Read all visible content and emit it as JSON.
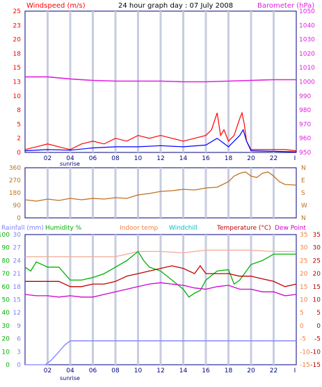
{
  "header": {
    "windspeed_label": "Windspeed (m/s)",
    "title": "24 hour graph day : 07 July 2008",
    "barometer_label": "Barometer (hPa)"
  },
  "legend": {
    "rainfall": "Rainfall (mm)",
    "humidity": "Humidity %",
    "indoor": "Indoor temp",
    "windchill": "Windchill",
    "temperature": "Temperature (°C)",
    "dewpoint": "Dew Point"
  },
  "sunrise_label": "sunrise",
  "colors": {
    "frame": "#000080",
    "grid": "#c8cce0",
    "wind_gust": "#ff0000",
    "wind_avg": "#0000ff",
    "barometer": "#e020e0",
    "direction": "#c07020",
    "rainfall": "#8080ff",
    "humidity": "#00b000",
    "indoor": "#f4b0a0",
    "temperature": "#c00000",
    "dewpoint": "#d000d0",
    "axis_text": "#000080",
    "baro_text": "#e020e0",
    "indoor_text": "#f08040",
    "windchill_text": "#00c0c0"
  },
  "chart_data": [
    {
      "type": "line",
      "title": "24 hour graph day : 07 July 2008",
      "x_ticks": [
        "02",
        "04",
        "06",
        "08",
        "10",
        "12",
        "14",
        "16",
        "18",
        "20",
        "22"
      ],
      "x_range_hours": [
        0,
        24
      ],
      "y_left": {
        "label": "Windspeed (m/s)",
        "ticks": [
          0,
          2,
          5,
          8,
          10,
          13,
          15,
          18,
          20,
          23,
          25
        ],
        "range": [
          0,
          25
        ]
      },
      "y_right": {
        "label": "Barometer (hPa)",
        "ticks": [
          950,
          960,
          970,
          980,
          990,
          1000,
          1010,
          1020,
          1030,
          1040,
          1050
        ],
        "range": [
          950,
          1050
        ]
      },
      "series": [
        {
          "name": "Barometer",
          "axis": "right",
          "x": [
            0,
            2,
            4,
            6,
            8,
            10,
            12,
            14,
            16,
            18,
            20,
            22,
            24
          ],
          "y": [
            1003.5,
            1003.5,
            1002,
            1001,
            1000.5,
            1000.5,
            1000.5,
            1000,
            1000,
            1000.5,
            1001,
            1001.5,
            1001.5
          ]
        },
        {
          "name": "Wind gust",
          "axis": "left",
          "x": [
            0,
            1,
            2,
            3,
            4,
            5,
            6,
            7,
            8,
            9,
            10,
            11,
            12,
            13,
            14,
            15,
            16,
            16.5,
            17,
            17.3,
            17.6,
            18,
            18.5,
            19,
            19.2,
            19.4,
            19.6,
            20,
            21,
            22,
            23,
            24
          ],
          "y": [
            0.5,
            1,
            1.5,
            1,
            0.5,
            1.5,
            2,
            1.5,
            2.5,
            2,
            3,
            2.5,
            3,
            2.5,
            2,
            2.5,
            3,
            4,
            7,
            3,
            4,
            2,
            3,
            6,
            7,
            5,
            2,
            0.5,
            0.5,
            0.5,
            0.5,
            0.3
          ]
        },
        {
          "name": "Wind average",
          "axis": "left",
          "x": [
            0,
            2,
            4,
            6,
            8,
            10,
            12,
            14,
            16,
            17,
            18,
            19,
            19.3,
            19.6,
            20,
            22,
            24
          ],
          "y": [
            0.3,
            0.5,
            0.4,
            0.8,
            1,
            1,
            1.2,
            1,
            1.3,
            2.5,
            1,
            3,
            4,
            2,
            0.3,
            0.2,
            0.1
          ]
        }
      ]
    },
    {
      "type": "line",
      "title": "",
      "x_range_hours": [
        0,
        24
      ],
      "y_left": {
        "ticks": [
          0,
          90,
          180,
          270,
          360
        ],
        "range": [
          0,
          360
        ]
      },
      "y_right": {
        "ticks": [
          "N",
          "W",
          "S",
          "E",
          "N"
        ]
      },
      "series": [
        {
          "name": "Wind direction",
          "x": [
            0,
            1,
            2,
            3,
            4,
            5,
            6,
            7,
            8,
            9,
            10,
            11,
            12,
            13,
            14,
            15,
            16,
            17,
            18,
            18.5,
            19,
            19.5,
            20,
            20.5,
            21,
            21.5,
            22,
            22.5,
            23,
            24
          ],
          "y": [
            130,
            120,
            135,
            125,
            140,
            130,
            140,
            135,
            145,
            140,
            165,
            175,
            190,
            195,
            205,
            200,
            215,
            220,
            260,
            300,
            320,
            330,
            300,
            290,
            320,
            330,
            300,
            260,
            240,
            235
          ]
        }
      ]
    },
    {
      "type": "line",
      "title": "",
      "x_ticks": [
        "02",
        "04",
        "06",
        "08",
        "10",
        "12",
        "14",
        "16",
        "18",
        "20",
        "22"
      ],
      "x_range_hours": [
        0,
        24
      ],
      "y_left_rain": {
        "ticks": [
          0,
          3,
          6,
          9,
          12,
          15,
          18,
          21,
          24,
          27,
          30
        ],
        "range": [
          0,
          30
        ]
      },
      "y_left_humidity": {
        "ticks": [
          0,
          10,
          20,
          30,
          40,
          50,
          60,
          70,
          80,
          90,
          100
        ],
        "range": [
          0,
          100
        ]
      },
      "y_right_indoor": {
        "ticks": [
          -15,
          -10,
          -5,
          0,
          5,
          10,
          15,
          20,
          25,
          30,
          35
        ],
        "range": [
          -15,
          35
        ]
      },
      "y_right_temp": {
        "ticks": [
          -15,
          -10,
          -5,
          0,
          5,
          10,
          15,
          20,
          25,
          30,
          35
        ],
        "range": [
          -15,
          35
        ]
      },
      "series": [
        {
          "name": "Rainfall",
          "axis": "rain",
          "x": [
            0,
            1.8,
            2.3,
            3,
            3.5,
            4,
            24
          ],
          "y": [
            0,
            0,
            1,
            3,
            4.5,
            5.5,
            5.5
          ]
        },
        {
          "name": "Humidity",
          "axis": "humidity",
          "x": [
            0,
            0.5,
            1,
            2,
            3,
            4,
            5,
            6,
            7,
            8,
            9,
            10,
            10.5,
            11,
            12,
            13,
            14,
            14.5,
            15,
            15.5,
            16,
            17,
            18,
            18.5,
            19,
            20,
            21,
            22,
            23,
            24
          ],
          "y": [
            75,
            72,
            79,
            75,
            75,
            65,
            65,
            67,
            70,
            75,
            80,
            87,
            80,
            75,
            72,
            65,
            58,
            52,
            55,
            57,
            65,
            72,
            73,
            62,
            65,
            77,
            80,
            85,
            85,
            85
          ]
        },
        {
          "name": "Indoor temp",
          "axis": "indoor",
          "x": [
            0,
            2,
            4,
            6,
            8,
            10,
            12,
            14,
            16,
            18,
            20,
            22,
            24
          ],
          "y": [
            26.5,
            26.5,
            26.5,
            26.5,
            26.5,
            28.5,
            28.5,
            28,
            29,
            29,
            29,
            28.5,
            28.5
          ]
        },
        {
          "name": "Temperature",
          "axis": "temp",
          "x": [
            0,
            2,
            3,
            4,
            5,
            6,
            7,
            8,
            9,
            10,
            11,
            12,
            13,
            14,
            15,
            15.5,
            16,
            17,
            18,
            19,
            20,
            21,
            22,
            23,
            24
          ],
          "y": [
            17,
            17,
            17,
            15,
            15,
            16,
            16,
            17,
            19,
            20,
            21,
            22,
            23,
            22,
            20,
            23,
            20,
            20,
            20,
            19,
            19,
            18,
            17,
            15,
            16
          ]
        },
        {
          "name": "Dew Point",
          "axis": "temp",
          "x": [
            0,
            1,
            2,
            3,
            4,
            5,
            6,
            7,
            8,
            9,
            10,
            11,
            12,
            13,
            14,
            15,
            16,
            17,
            18,
            19,
            20,
            21,
            22,
            23,
            24
          ],
          "y": [
            12,
            11.5,
            11.5,
            11,
            11.5,
            11,
            11,
            12,
            13,
            14,
            15,
            16,
            16.5,
            16,
            15.5,
            14.5,
            14,
            15,
            15.5,
            14,
            14,
            13,
            13,
            11.5,
            12
          ]
        }
      ]
    }
  ]
}
